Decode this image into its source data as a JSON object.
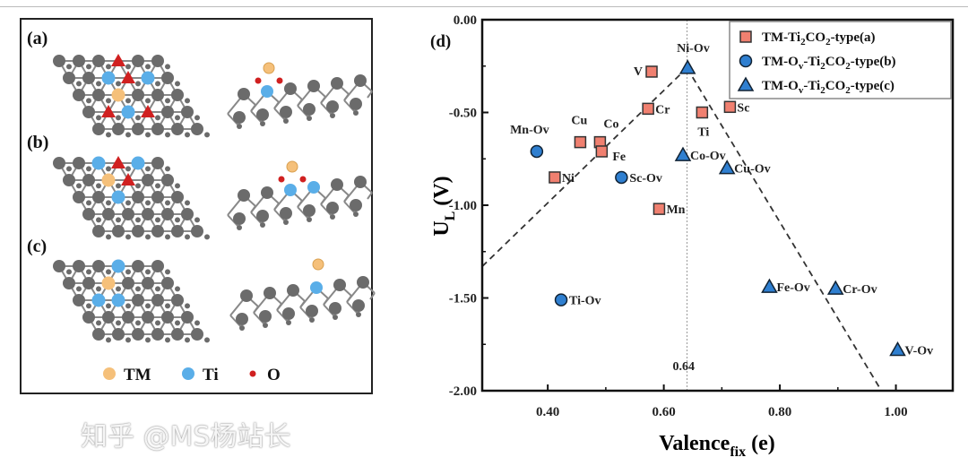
{
  "left_panel": {
    "labels": [
      "(a)",
      "(b)",
      "(c)"
    ],
    "legend": [
      {
        "name": "TM",
        "color": "#f5c07a"
      },
      {
        "name": "Ti",
        "color": "#5aaee8"
      },
      {
        "name": "O",
        "color": "#d02020"
      }
    ],
    "lattice_color": "#6b6b6b"
  },
  "watermark": "知乎 @MS杨站长",
  "chart_data": {
    "type": "scatter",
    "panel_label": "(d)",
    "xlabel": "Valence",
    "xlabel_sub": "fix",
    "xlabel_suffix": " (e)",
    "ylabel": "U",
    "ylabel_sub": "L",
    "ylabel_suffix": " (V)",
    "xlim": [
      0.287,
      1.098
    ],
    "ylim": [
      -2.0,
      0.0
    ],
    "xticks": [
      0.4,
      0.6,
      0.8,
      1.0
    ],
    "xtick_labels": [
      "0.40",
      "0.60",
      "0.80",
      "1.00"
    ],
    "yticks": [
      0.0,
      -0.5,
      -1.0,
      -1.5,
      -2.0
    ],
    "ytick_labels": [
      "0.00",
      "-0.50",
      "-1.00",
      "-1.50",
      "-2.00"
    ],
    "vline": {
      "x": 0.64,
      "label": "0.64"
    },
    "trend_lines": [
      {
        "from": [
          0.287,
          -1.33
        ],
        "to": [
          0.64,
          -0.26
        ]
      },
      {
        "from": [
          0.64,
          -0.26
        ],
        "to": [
          0.975,
          -2.0
        ]
      }
    ],
    "legend_position": "top-right",
    "series": [
      {
        "name": "TM-Ti2CO2-type(a)",
        "legend": [
          "TM-Ti",
          "2",
          "CO",
          "2",
          "-type(a)"
        ],
        "marker": "square",
        "color": "#f08070",
        "points": [
          {
            "label": "V",
            "x": 0.579,
            "y": -0.28
          },
          {
            "label": "Cr",
            "x": 0.573,
            "y": -0.48
          },
          {
            "label": "Ti",
            "x": 0.666,
            "y": -0.5
          },
          {
            "label": "Sc",
            "x": 0.714,
            "y": -0.47
          },
          {
            "label": "Cu",
            "x": 0.456,
            "y": -0.66
          },
          {
            "label": "Co",
            "x": 0.49,
            "y": -0.66
          },
          {
            "label": "Fe",
            "x": 0.493,
            "y": -0.71
          },
          {
            "label": "Ni",
            "x": 0.412,
            "y": -0.85
          },
          {
            "label": "Mn",
            "x": 0.592,
            "y": -1.02
          }
        ]
      },
      {
        "name": "TM-Ov-Ti2CO2-type(b)",
        "legend": [
          "TM-O",
          "v",
          "-Ti",
          "2",
          "CO",
          "2",
          "-type(b)"
        ],
        "marker": "circle",
        "color": "#2f7fd0",
        "points": [
          {
            "label": "Mn-Ov",
            "x": 0.381,
            "y": -0.71
          },
          {
            "label": "Sc-Ov",
            "x": 0.527,
            "y": -0.85
          },
          {
            "label": "Ti-Ov",
            "x": 0.423,
            "y": -1.51
          }
        ]
      },
      {
        "name": "TM-Ov-Ti2CO2-type(c)",
        "legend": [
          "TM-O",
          "v",
          "-Ti",
          "2",
          "CO",
          "2",
          "-type(c)"
        ],
        "marker": "triangle",
        "color": "#2f7fd0",
        "points": [
          {
            "label": "Ni-Ov",
            "x": 0.641,
            "y": -0.26
          },
          {
            "label": "Co-Ov",
            "x": 0.633,
            "y": -0.73
          },
          {
            "label": "Cu-Ov",
            "x": 0.709,
            "y": -0.8
          },
          {
            "label": "Fe-Ov",
            "x": 0.782,
            "y": -1.44
          },
          {
            "label": "Cr-Ov",
            "x": 0.896,
            "y": -1.45
          },
          {
            "label": "V-Ov",
            "x": 1.003,
            "y": -1.78
          }
        ]
      }
    ]
  }
}
